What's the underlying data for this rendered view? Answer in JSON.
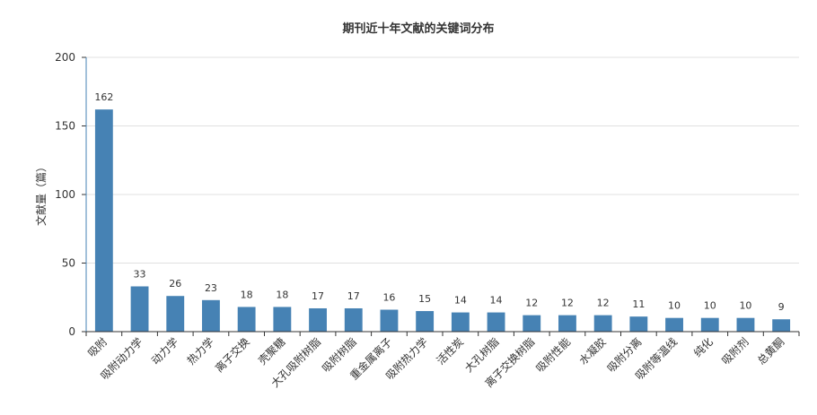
{
  "chart_data": {
    "type": "bar",
    "title": "期刊近十年文献的关键词分布",
    "ylabel": "文献量（篇）",
    "xlabel": "",
    "ylim": [
      0,
      200
    ],
    "yticks": [
      0,
      50,
      100,
      150,
      200
    ],
    "grid": true,
    "bar_color": "#4682b4",
    "categories": [
      "吸附",
      "吸附动力学",
      "动力学",
      "热力学",
      "离子交换",
      "壳聚糖",
      "大孔吸附树脂",
      "吸附树脂",
      "重金属离子",
      "吸附热力学",
      "活性炭",
      "大孔树脂",
      "离子交换树脂",
      "吸附性能",
      "水凝胶",
      "吸附分离",
      "吸附等温线",
      "纯化",
      "吸附剂",
      "总黄酮"
    ],
    "values": [
      162,
      33,
      26,
      23,
      18,
      18,
      17,
      17,
      16,
      15,
      14,
      14,
      12,
      12,
      12,
      11,
      10,
      10,
      10,
      9
    ]
  }
}
